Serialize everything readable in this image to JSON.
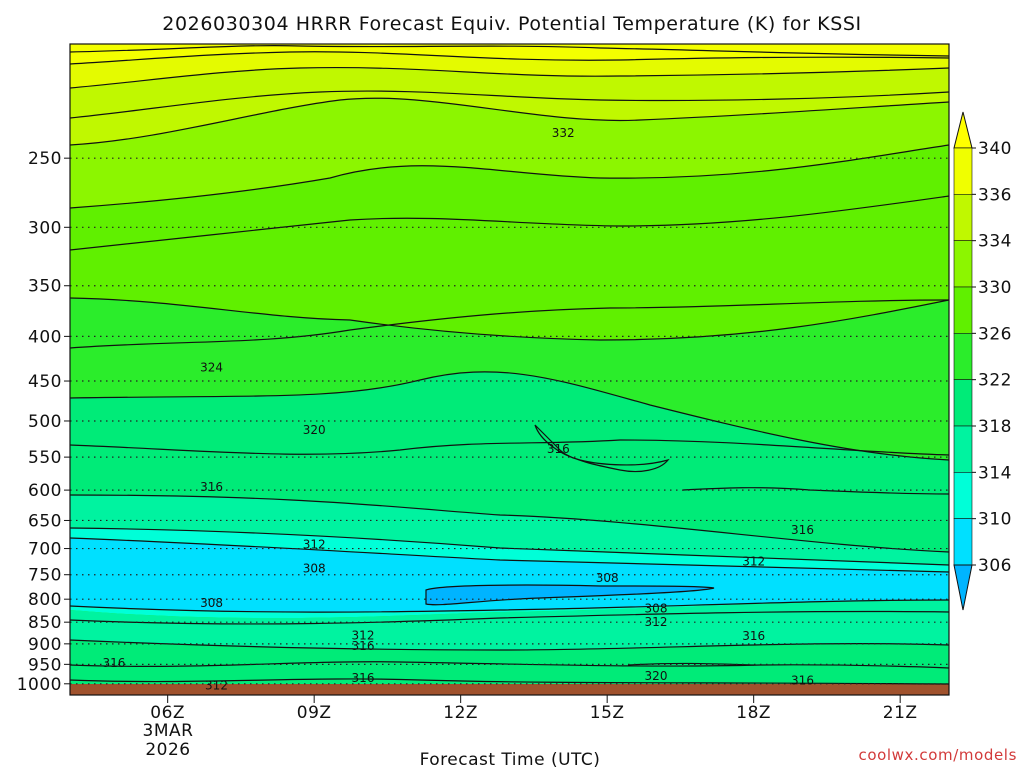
{
  "chart_data": {
    "type": "contour",
    "title": "2026030304 HRRR Forecast Equiv. Potential Temperature (K) for KSSI",
    "xlabel": "Forecast Time (UTC)",
    "ylabel": "",
    "x_range_hours": [
      4,
      22
    ],
    "x_ticks": [
      {
        "label": "06Z",
        "hour": 6
      },
      {
        "label": "09Z",
        "hour": 9
      },
      {
        "label": "12Z",
        "hour": 12
      },
      {
        "label": "15Z",
        "hour": 15
      },
      {
        "label": "18Z",
        "hour": 18
      },
      {
        "label": "21Z",
        "hour": 21
      }
    ],
    "date_label": [
      "3MAR",
      "2026"
    ],
    "y_axis": "pressure (hPa), log scale",
    "y_range": [
      1030,
      185
    ],
    "y_ticks": [
      250,
      300,
      350,
      400,
      450,
      500,
      550,
      600,
      650,
      700,
      750,
      800,
      850,
      900,
      950,
      1000
    ],
    "colorbar": {
      "levels": [
        306,
        310,
        314,
        318,
        322,
        326,
        330,
        334,
        336,
        340
      ],
      "colors": [
        "#00e0ff",
        "#00ffd8",
        "#00f3a0",
        "#00eb78",
        "#2bed2b",
        "#60f000",
        "#8cf600",
        "#c0f800",
        "#f0ff00"
      ],
      "under_color": "#00b4ff",
      "over_color": "#ffff00"
    },
    "contour_labels": [
      {
        "value": "332",
        "hour": 14.1,
        "p": 234
      },
      {
        "value": "324",
        "hour": 6.9,
        "p": 434
      },
      {
        "value": "320",
        "hour": 9.0,
        "p": 512
      },
      {
        "value": "316",
        "hour": 6.9,
        "p": 595
      },
      {
        "value": "316",
        "hour": 14.0,
        "p": 538
      },
      {
        "value": "316",
        "hour": 19.0,
        "p": 667
      },
      {
        "value": "312",
        "hour": 9.0,
        "p": 693
      },
      {
        "value": "308",
        "hour": 9.0,
        "p": 738
      },
      {
        "value": "308",
        "hour": 15.0,
        "p": 757
      },
      {
        "value": "312",
        "hour": 18.0,
        "p": 724
      },
      {
        "value": "308",
        "hour": 6.9,
        "p": 808
      },
      {
        "value": "308",
        "hour": 16.0,
        "p": 820
      },
      {
        "value": "312",
        "hour": 16.0,
        "p": 850
      },
      {
        "value": "312",
        "hour": 10.0,
        "p": 880
      },
      {
        "value": "316",
        "hour": 10.0,
        "p": 905
      },
      {
        "value": "316",
        "hour": 18.0,
        "p": 882
      },
      {
        "value": "316",
        "hour": 4.9,
        "p": 947
      },
      {
        "value": "320",
        "hour": 16.0,
        "p": 980
      },
      {
        "value": "316",
        "hour": 10.0,
        "p": 985
      },
      {
        "value": "316",
        "hour": 19.0,
        "p": 992
      },
      {
        "value": "312",
        "hour": 7.0,
        "p": 1005
      }
    ]
  },
  "credit": "coolwx.com/models"
}
